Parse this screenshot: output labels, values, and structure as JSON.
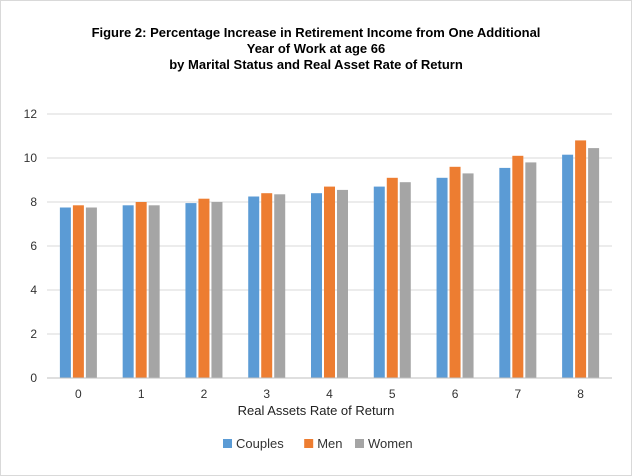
{
  "chart_data": {
    "type": "bar",
    "title_lines": [
      "Figure 2: Percentage Increase in Retirement Income from One Additional",
      "Year of Work at age 66",
      "by Marital Status and Real Asset Rate of Return"
    ],
    "xlabel": "Real Assets Rate of Return",
    "ylabel": "",
    "categories": [
      "0",
      "1",
      "2",
      "3",
      "4",
      "5",
      "6",
      "7",
      "8"
    ],
    "ylim": [
      0,
      12
    ],
    "yticks": [
      "0",
      "2",
      "4",
      "6",
      "8",
      "10",
      "12"
    ],
    "grid": true,
    "legend_position": "bottom",
    "series": [
      {
        "name": "Couples",
        "color": "#5b9bd5",
        "values": [
          7.75,
          7.85,
          7.95,
          8.25,
          8.4,
          8.7,
          9.1,
          9.55,
          10.15
        ]
      },
      {
        "name": "Men",
        "color": "#ed7d31",
        "values": [
          7.85,
          8.0,
          8.15,
          8.4,
          8.7,
          9.1,
          9.6,
          10.1,
          10.8
        ]
      },
      {
        "name": "Women",
        "color": "#a5a5a5",
        "values": [
          7.75,
          7.85,
          8.0,
          8.35,
          8.55,
          8.9,
          9.3,
          9.8,
          10.45
        ]
      }
    ]
  }
}
